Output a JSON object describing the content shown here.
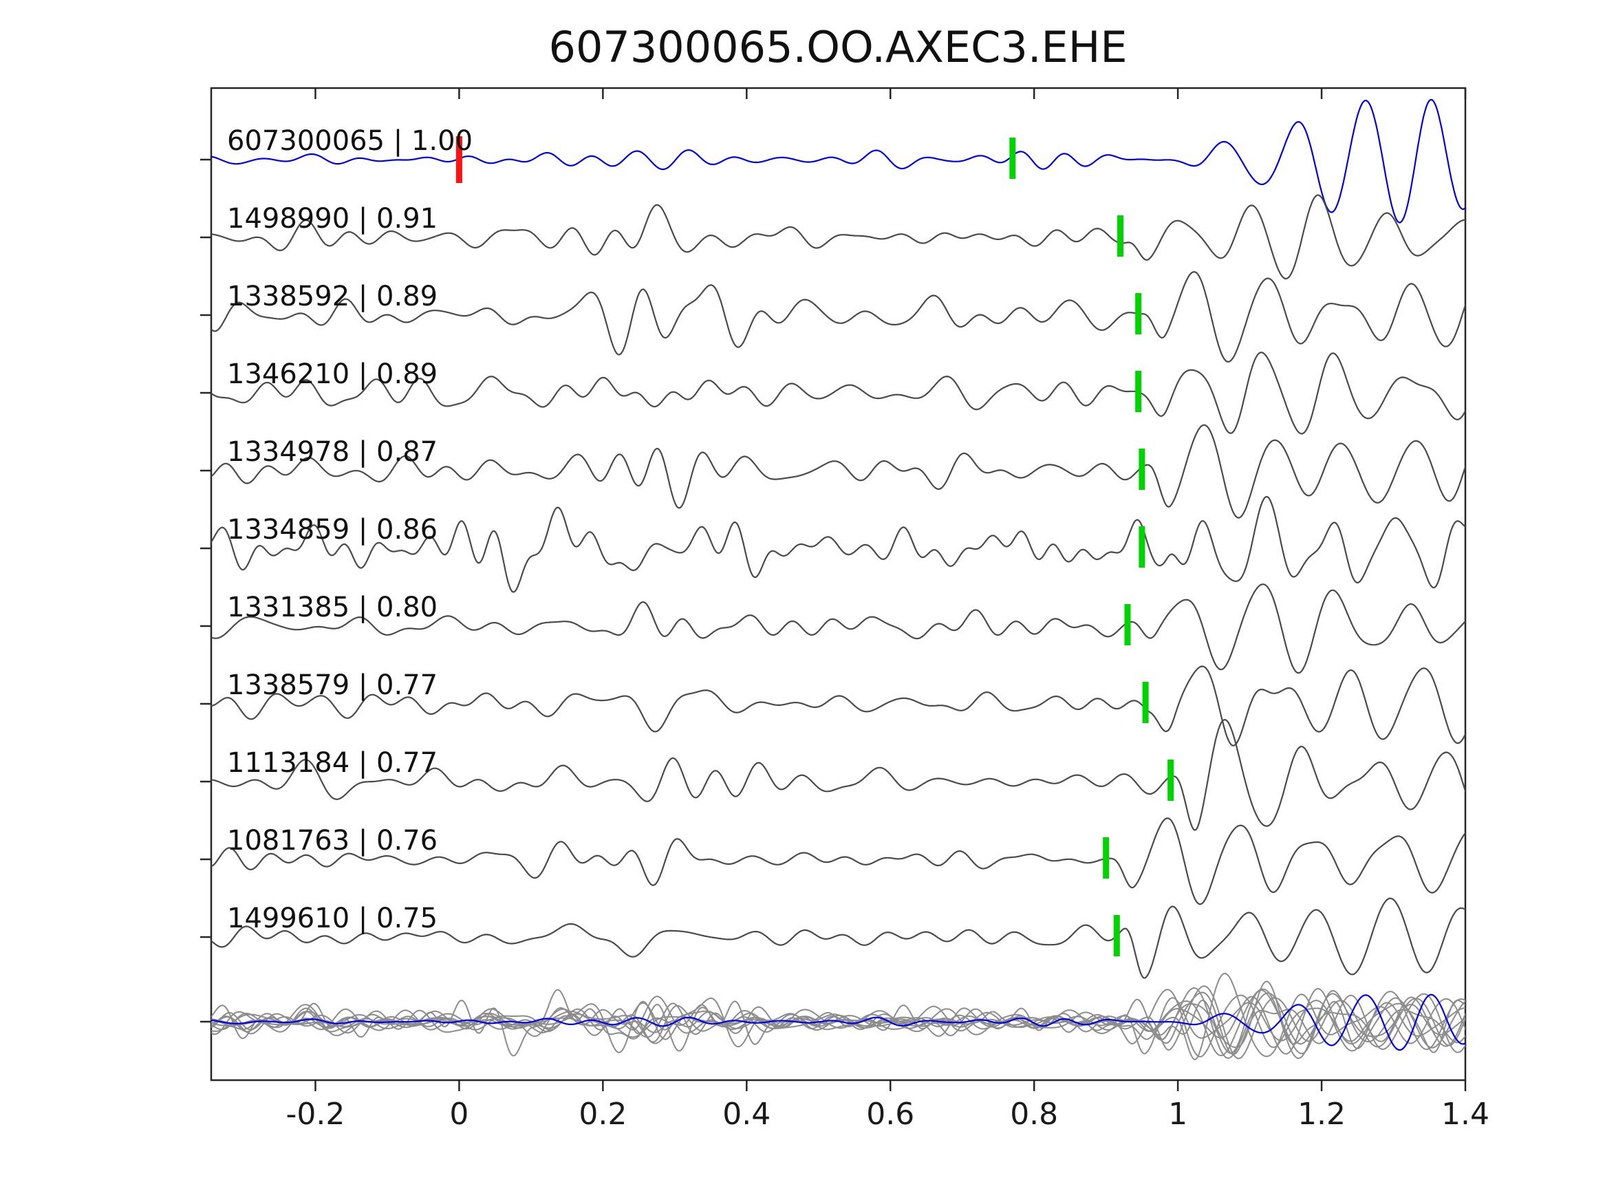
{
  "colors": {
    "template_trace": "#0000ee",
    "match_trace": "#4a4a4a",
    "overlay_trace": "#8c8c8c",
    "pick_marker": "#00d400",
    "origin_marker": "#ff1111",
    "axis": "#262626",
    "text": "#111111",
    "background": "#ffffff"
  },
  "chart_data": {
    "type": "line",
    "title": "607300065.OO.AXEC3.EHE",
    "xlabel": "",
    "ylabel": "",
    "xlim": [
      -0.345,
      1.4
    ],
    "x_ticks": [
      -0.2,
      0,
      0.2,
      0.4,
      0.6,
      0.8,
      1,
      1.2,
      1.4
    ],
    "x_tick_labels": [
      "-0.2",
      "0",
      "0.2",
      "0.4",
      "0.6",
      "0.8",
      "1",
      "1.2",
      "1.4"
    ],
    "grid": false,
    "legend": null,
    "description": "Template waveform 607300065 (blue, correlation 1.00, red origin marker at t=0, green pick at 0.77) stacked above ten matched detection waveforms (gray, green phase picks near t=0.9-1.0), with all traces superimposed at the bottom.",
    "traces": [
      {
        "id": "607300065",
        "correlation": "1.00",
        "label": "607300065 | 1.00",
        "role": "template",
        "pick_x": 0.77,
        "origin_x": 0.0,
        "seed": 7,
        "noise": 3.2,
        "bursts": [
          {
            "c": 0.27,
            "w": 0.1,
            "k": 1.2
          },
          {
            "c": 0.75,
            "w": 0.18,
            "k": 1.6
          }
        ],
        "arrival_x": 1.0,
        "ramp": 0.13,
        "amp": 86,
        "period": 0.093,
        "decay": 0.03
      },
      {
        "id": "1498990",
        "correlation": "0.91",
        "label": "1498990 | 0.91",
        "role": "match",
        "pick_x": 0.92,
        "seed": 101,
        "noise": 7.5,
        "bursts": [
          {
            "c": 0.27,
            "w": 0.09,
            "k": 1.8
          }
        ],
        "arrival_x": 0.925,
        "ramp": 0.035,
        "amp": 60,
        "period": 0.1,
        "decay": 0.25
      },
      {
        "id": "1338592",
        "correlation": "0.89",
        "label": "1338592 | 0.89",
        "role": "match",
        "pick_x": 0.945,
        "seed": 202,
        "noise": 12.0,
        "bursts": [
          {
            "c": 0.3,
            "w": 0.12,
            "k": 0.9
          }
        ],
        "arrival_x": 0.95,
        "ramp": 0.035,
        "amp": 62,
        "period": 0.098,
        "decay": 0.2
      },
      {
        "id": "1346210",
        "correlation": "0.89",
        "label": "1346210 | 0.89",
        "role": "match",
        "pick_x": 0.945,
        "seed": 303,
        "noise": 9.5,
        "bursts": [
          {
            "c": 0.27,
            "w": 0.1,
            "k": 1.6
          }
        ],
        "arrival_x": 0.95,
        "ramp": 0.035,
        "amp": 60,
        "period": 0.1,
        "decay": 0.2
      },
      {
        "id": "1334978",
        "correlation": "0.87",
        "label": "1334978 | 0.87",
        "role": "match",
        "pick_x": 0.95,
        "seed": 404,
        "noise": 10.0,
        "bursts": [
          {
            "c": 0.24,
            "w": 0.08,
            "k": 2.4
          }
        ],
        "arrival_x": 0.955,
        "ramp": 0.035,
        "amp": 64,
        "period": 0.1,
        "decay": 0.2
      },
      {
        "id": "1334859",
        "correlation": "0.86",
        "label": "1334859 | 0.86",
        "role": "match",
        "pick_x": 0.95,
        "seed": 505,
        "noise": 16.0,
        "nfmax": 26,
        "bursts": [
          {
            "c": 0.25,
            "w": 0.15,
            "k": 0.5
          }
        ],
        "arrival_x": 0.955,
        "ramp": 0.03,
        "amp": 58,
        "period": 0.095,
        "decay": 0.25
      },
      {
        "id": "1331385",
        "correlation": "0.80",
        "label": "1331385 | 0.80",
        "role": "match",
        "pick_x": 0.93,
        "seed": 606,
        "noise": 7.0,
        "bursts": [
          {
            "c": 0.27,
            "w": 0.09,
            "k": 1.9
          }
        ],
        "arrival_x": 0.935,
        "ramp": 0.035,
        "amp": 60,
        "period": 0.102,
        "decay": 0.25
      },
      {
        "id": "1338579",
        "correlation": "0.77",
        "label": "1338579 | 0.77",
        "role": "match",
        "pick_x": 0.955,
        "seed": 707,
        "noise": 8.0,
        "bursts": [
          {
            "c": 0.27,
            "w": 0.09,
            "k": 1.7
          }
        ],
        "arrival_x": 0.96,
        "ramp": 0.035,
        "amp": 62,
        "period": 0.1,
        "decay": 0.22
      },
      {
        "id": "1113184",
        "correlation": "0.77",
        "label": "1113184 | 0.77",
        "role": "match",
        "pick_x": 0.99,
        "seed": 808,
        "noise": 9.5,
        "bursts": [
          {
            "c": 0.3,
            "w": 0.12,
            "k": 1.5
          }
        ],
        "arrival_x": 0.995,
        "ramp": 0.035,
        "amp": 64,
        "period": 0.1,
        "decay": 0.2
      },
      {
        "id": "1081763",
        "correlation": "0.76",
        "label": "1081763 | 0.76",
        "role": "match",
        "pick_x": 0.9,
        "seed": 909,
        "noise": 7.0,
        "bursts": [
          {
            "c": 0.27,
            "w": 0.1,
            "k": 1.8
          }
        ],
        "arrival_x": 0.905,
        "ramp": 0.035,
        "amp": 60,
        "period": 0.105,
        "decay": 0.25
      },
      {
        "id": "1499610",
        "correlation": "0.75",
        "label": "1499610 | 0.75",
        "role": "match",
        "pick_x": 0.915,
        "seed": 1010,
        "noise": 7.0,
        "bursts": [
          {
            "c": 0.25,
            "w": 0.09,
            "k": 1.9
          }
        ],
        "arrival_x": 0.92,
        "ramp": 0.035,
        "amp": 62,
        "period": 0.1,
        "decay": 0.22
      }
    ],
    "overlay": {
      "includes_all_traces": true,
      "gray_scale": 0.78,
      "template_scale": 0.45
    }
  }
}
